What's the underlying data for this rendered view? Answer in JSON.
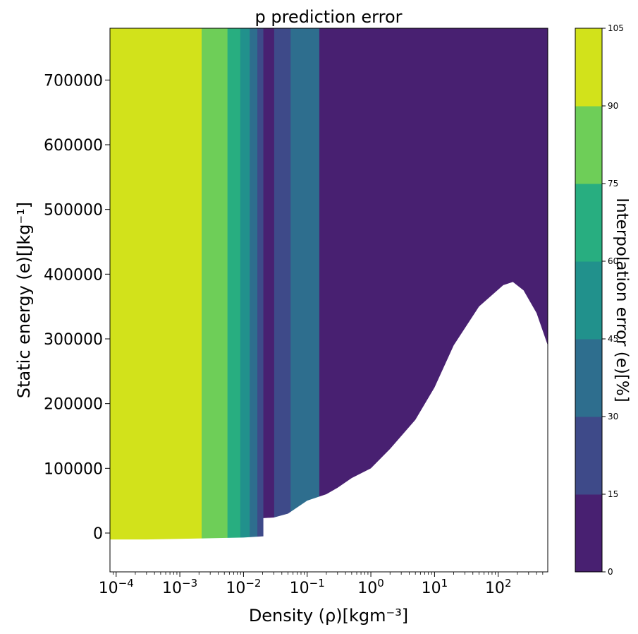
{
  "chart_data": {
    "type": "heatmap",
    "title": "p prediction error",
    "xlabel": "Density (ρ)[kgm⁻³]",
    "ylabel": "Static energy (e)[Jkg⁻¹]",
    "x_scale": "log",
    "xlim": [
      8e-05,
      600
    ],
    "ylim": [
      -60000,
      780000
    ],
    "x_ticks": [
      {
        "value": 0.0001,
        "base": "10",
        "exp": "−4"
      },
      {
        "value": 0.001,
        "base": "10",
        "exp": "−3"
      },
      {
        "value": 0.01,
        "base": "10",
        "exp": "−2"
      },
      {
        "value": 0.1,
        "base": "10",
        "exp": "−1"
      },
      {
        "value": 1,
        "base": "10",
        "exp": "0"
      },
      {
        "value": 10,
        "base": "10",
        "exp": "1"
      },
      {
        "value": 100,
        "base": "10",
        "exp": "2"
      }
    ],
    "y_ticks": [
      0,
      100000,
      200000,
      300000,
      400000,
      500000,
      600000,
      700000
    ],
    "colorbar": {
      "label": "Interpolation error (e)[%]",
      "levels": [
        0,
        15,
        30,
        45,
        60,
        75,
        90,
        105
      ],
      "colors": [
        "#482071",
        "#3e4a89",
        "#2e6e8e",
        "#21918c",
        "#28ae80",
        "#6ece58",
        "#d2e21b"
      ]
    },
    "regions": [
      {
        "x0": 8e-05,
        "x1": 0.0022,
        "level": 6
      },
      {
        "x0": 0.0022,
        "x1": 0.0056,
        "level": 5
      },
      {
        "x0": 0.0056,
        "x1": 0.0089,
        "level": 4
      },
      {
        "x0": 0.0089,
        "x1": 0.0125,
        "level": 3
      },
      {
        "x0": 0.0125,
        "x1": 0.0165,
        "level": 2
      },
      {
        "x0": 0.0165,
        "x1": 0.0205,
        "level": 1
      },
      {
        "x0": 0.0205,
        "x1": 0.0303,
        "level": 0
      },
      {
        "x0": 0.0303,
        "x1": 0.055,
        "level": 1
      },
      {
        "x0": 0.055,
        "x1": 0.155,
        "level": 2
      },
      {
        "x0": 0.155,
        "x1": 600,
        "level": 0
      }
    ],
    "undefined_region_boundary": [
      [
        8e-05,
        -10000
      ],
      [
        0.0003,
        -10000
      ],
      [
        0.003,
        -8000
      ],
      [
        0.01,
        -7000
      ],
      [
        0.0205,
        -5000
      ],
      [
        0.0205,
        23000
      ],
      [
        0.03,
        24000
      ],
      [
        0.05,
        30000
      ],
      [
        0.1,
        50000
      ],
      [
        0.2,
        60000
      ],
      [
        0.3,
        70000
      ],
      [
        0.5,
        85000
      ],
      [
        1,
        100000
      ],
      [
        2,
        130000
      ],
      [
        5,
        175000
      ],
      [
        10,
        225000
      ],
      [
        20,
        290000
      ],
      [
        50,
        350000
      ],
      [
        120,
        383000
      ],
      [
        170,
        388000
      ],
      [
        250,
        375000
      ],
      [
        400,
        340000
      ],
      [
        600,
        290000
      ]
    ]
  }
}
